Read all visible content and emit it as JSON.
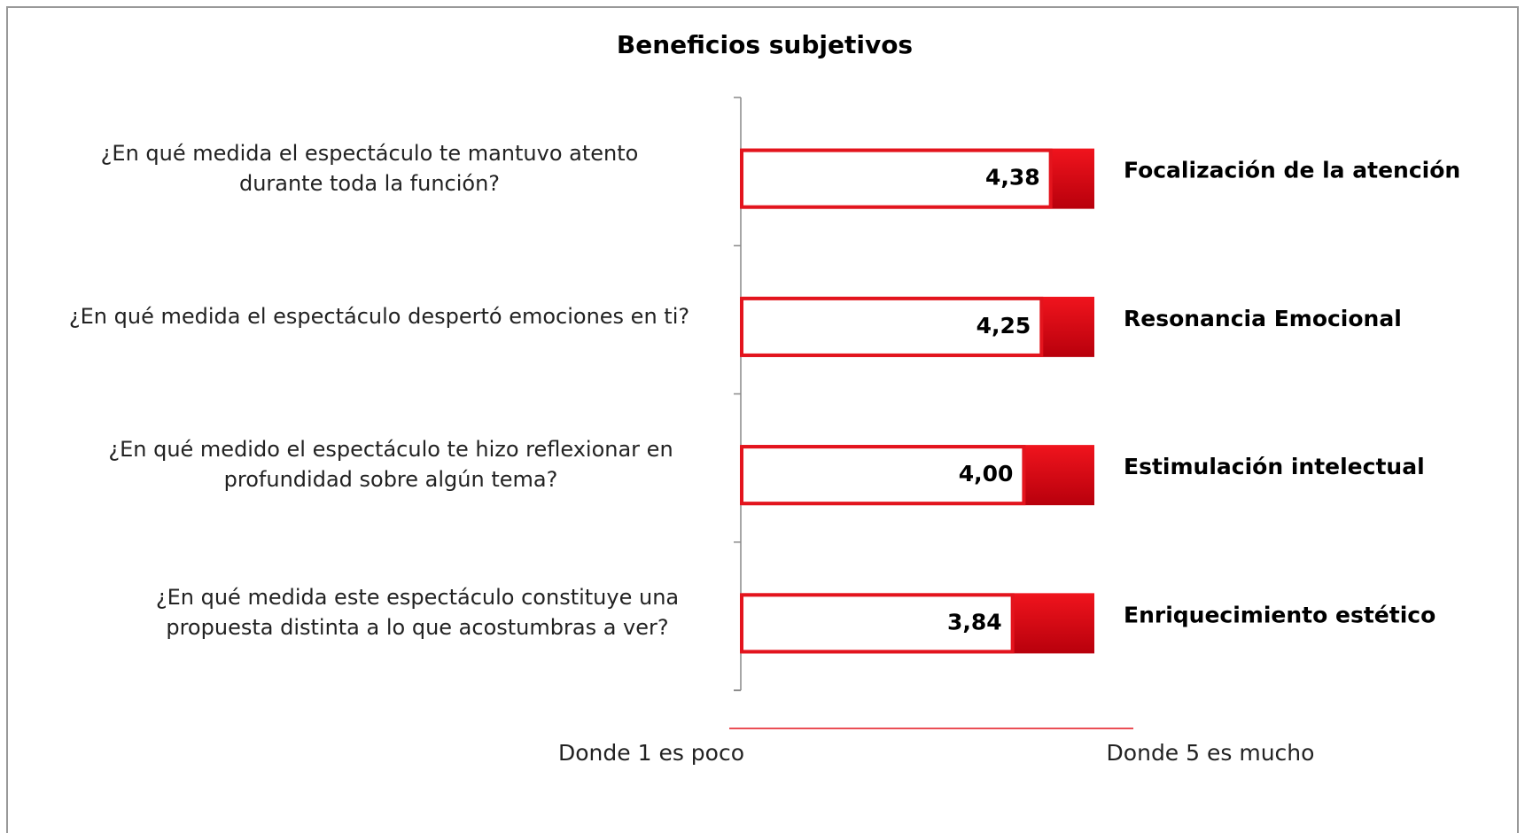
{
  "chart_data": {
    "type": "bar",
    "orientation": "horizontal",
    "title": "Beneficios subjetivos",
    "categories": [
      "¿En qué medida el espectáculo te mantuvo atento durante toda la función?",
      "¿En qué medida el espectáculo despertó emociones en ti?",
      "¿En qué medido el espectáculo te hizo reflexionar en profundidad sobre algún tema?",
      "¿En qué medida este espectáculo constituye una propuesta distinta a lo que acostumbras a ver?"
    ],
    "dimensions": [
      "Focalización de la atención",
      "Resonancia Emocional",
      "Estimulación intelectual",
      "Enriquecimiento estético"
    ],
    "values": [
      4.38,
      4.25,
      4.0,
      3.84
    ],
    "value_labels": [
      "4,38",
      "4,25",
      "4,00",
      "3,84"
    ],
    "color": "#e3141d",
    "xlim": [
      0,
      5
    ],
    "scale_notes": [
      "Donde 1 es poco",
      "Donde 5 es mucho"
    ]
  }
}
